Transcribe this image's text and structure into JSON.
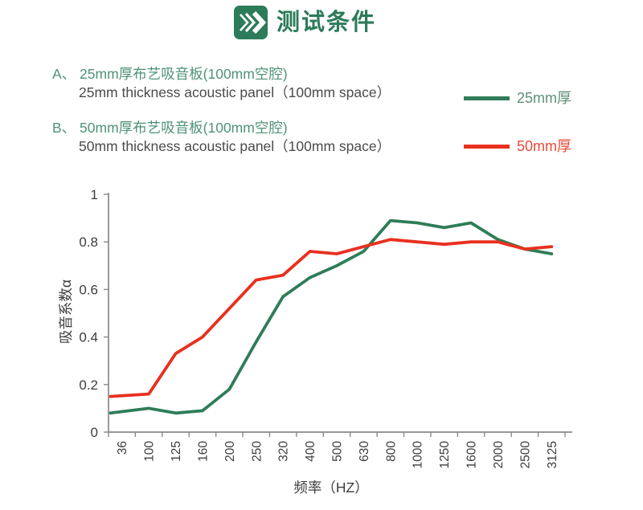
{
  "header": {
    "title": "测试条件",
    "icon": "double-chevron-right-icon",
    "title_color": "#2c7b59",
    "icon_color": "#2c7b59"
  },
  "conditions": [
    {
      "id": "A",
      "title_zh": "A、 25mm厚布艺吸音板(100mm空腔)",
      "title_en": "25mm thickness acoustic panel（100mm space）"
    },
    {
      "id": "B",
      "title_zh": "B、 50mm厚布艺吸音板(100mm空腔)",
      "title_en": "50mm thickness acoustic panel（100mm space）"
    }
  ],
  "legend": [
    {
      "label": "25mm厚",
      "color": "#2e7d58",
      "label_color": "#5e9078"
    },
    {
      "label": "50mm厚",
      "color": "#e9301f",
      "label_color": "#e84b38"
    }
  ],
  "chart_data": {
    "type": "line",
    "categories": [
      "36",
      "100",
      "125",
      "160",
      "200",
      "250",
      "320",
      "400",
      "500",
      "630",
      "800",
      "1000",
      "1250",
      "1600",
      "2000",
      "2500",
      "3125"
    ],
    "series": [
      {
        "name": "25mm厚",
        "color": "#2e7d58",
        "values": [
          0.08,
          0.1,
          0.08,
          0.09,
          0.18,
          0.38,
          0.57,
          0.65,
          0.7,
          0.76,
          0.89,
          0.88,
          0.86,
          0.88,
          0.81,
          0.77,
          0.75
        ]
      },
      {
        "name": "50mm厚",
        "color": "#e9301f",
        "values": [
          0.15,
          0.16,
          0.33,
          0.4,
          0.52,
          0.64,
          0.66,
          0.76,
          0.75,
          0.78,
          0.81,
          0.8,
          0.79,
          0.8,
          0.8,
          0.77,
          0.78
        ]
      }
    ],
    "title": "",
    "xlabel": "频率（HZ）",
    "ylabel": "吸音系数α",
    "ylim": [
      0,
      1
    ],
    "yticks": [
      0,
      0.2,
      0.4,
      0.6,
      0.8,
      1
    ],
    "grid": false,
    "legend_position": "top-right",
    "axis_color": "#8a8a8a",
    "tick_label_color": "#3e3e3e"
  }
}
